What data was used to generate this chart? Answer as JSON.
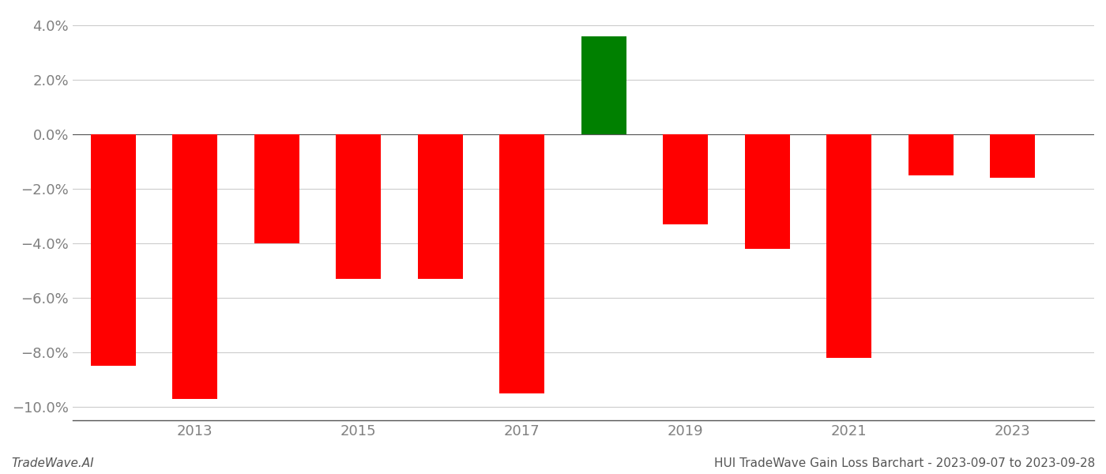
{
  "years": [
    2012,
    2013,
    2014,
    2015,
    2016,
    2017,
    2018,
    2019,
    2020,
    2021,
    2022,
    2023
  ],
  "values": [
    -0.085,
    -0.097,
    -0.04,
    -0.053,
    -0.053,
    -0.095,
    0.036,
    -0.033,
    -0.042,
    -0.082,
    -0.015,
    -0.016
  ],
  "colors": [
    "#ff0000",
    "#ff0000",
    "#ff0000",
    "#ff0000",
    "#ff0000",
    "#ff0000",
    "#008000",
    "#ff0000",
    "#ff0000",
    "#ff0000",
    "#ff0000",
    "#ff0000"
  ],
  "ylim": [
    -0.105,
    0.045
  ],
  "yticks": [
    -0.1,
    -0.08,
    -0.06,
    -0.04,
    -0.02,
    0.0,
    0.02,
    0.04
  ],
  "xtick_years": [
    2013,
    2015,
    2017,
    2019,
    2021,
    2023
  ],
  "title": "HUI TradeWave Gain Loss Barchart - 2023-09-07 to 2023-09-28",
  "watermark": "TradeWave.AI",
  "bar_width": 0.55,
  "grid_color": "#cccccc",
  "axis_label_color": "#808080",
  "background_color": "#ffffff"
}
